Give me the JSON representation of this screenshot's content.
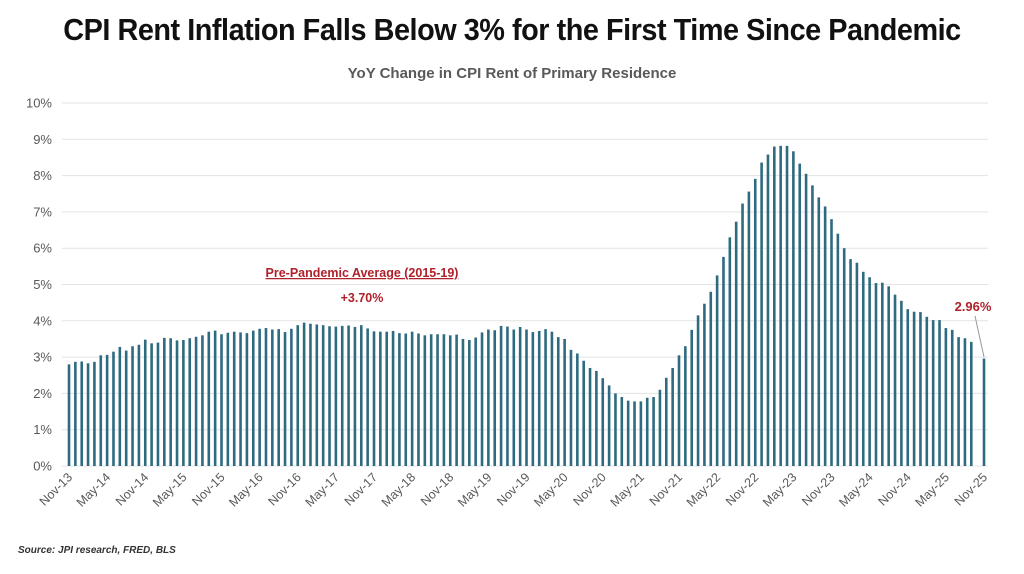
{
  "title": "CPI Rent Inflation Falls Below 3% for the First Time Since Pandemic",
  "source": "Source: JPI research, FRED, BLS",
  "chart_data": {
    "type": "bar",
    "title": "YoY Change in CPI Rent of Primary Residence",
    "xlabel": "",
    "ylabel": "",
    "ylim": [
      0,
      10
    ],
    "y_ticks": [
      "0%",
      "1%",
      "2%",
      "3%",
      "4%",
      "5%",
      "6%",
      "7%",
      "8%",
      "9%",
      "10%"
    ],
    "y_tick_values": [
      0,
      1,
      2,
      3,
      4,
      5,
      6,
      7,
      8,
      9,
      10
    ],
    "grid": true,
    "bar_color": "#2f6b80",
    "annotation_color": "#b0202a",
    "x_start": "Nov-13",
    "x_end": "Nov-25",
    "x_ticks": [
      "Nov-13",
      "May-14",
      "Nov-14",
      "May-15",
      "Nov-15",
      "May-16",
      "Nov-16",
      "May-17",
      "Nov-17",
      "May-18",
      "Nov-18",
      "May-19",
      "Nov-19",
      "May-20",
      "Nov-20",
      "May-21",
      "Nov-21",
      "May-22",
      "Nov-22",
      "May-23",
      "Nov-23",
      "May-24",
      "Nov-24",
      "May-25",
      "Nov-25"
    ],
    "values": [
      2.8,
      2.87,
      2.88,
      2.83,
      2.87,
      3.05,
      3.06,
      3.15,
      3.28,
      3.18,
      3.3,
      3.34,
      3.48,
      3.38,
      3.4,
      3.53,
      3.52,
      3.46,
      3.47,
      3.52,
      3.56,
      3.6,
      3.7,
      3.73,
      3.63,
      3.67,
      3.7,
      3.68,
      3.66,
      3.73,
      3.78,
      3.8,
      3.76,
      3.77,
      3.69,
      3.78,
      3.88,
      3.95,
      3.92,
      3.9,
      3.88,
      3.85,
      3.84,
      3.86,
      3.87,
      3.83,
      3.88,
      3.79,
      3.71,
      3.7,
      3.7,
      3.72,
      3.66,
      3.65,
      3.7,
      3.65,
      3.6,
      3.63,
      3.63,
      3.63,
      3.6,
      3.62,
      3.5,
      3.47,
      3.54,
      3.68,
      3.76,
      3.74,
      3.86,
      3.84,
      3.76,
      3.83,
      3.76,
      3.69,
      3.72,
      3.77,
      3.7,
      3.55,
      3.5,
      3.2,
      3.1,
      2.9,
      2.7,
      2.62,
      2.42,
      2.22,
      2.0,
      1.9,
      1.8,
      1.78,
      1.78,
      1.88,
      1.9,
      2.1,
      2.43,
      2.7,
      3.05,
      3.3,
      3.75,
      4.15,
      4.47,
      4.8,
      5.25,
      5.76,
      6.3,
      6.73,
      7.23,
      7.56,
      7.91,
      8.36,
      8.58,
      8.8,
      8.82,
      8.82,
      8.67,
      8.33,
      8.05,
      7.73,
      7.4,
      7.15,
      6.8,
      6.4,
      6.0,
      5.7,
      5.6,
      5.35,
      5.2,
      5.04,
      5.05,
      4.95,
      4.72,
      4.55,
      4.32,
      4.25,
      4.24,
      4.11,
      4.02,
      4.02,
      3.8,
      3.75,
      3.55,
      3.52,
      3.42,
      null,
      2.96
    ],
    "annotations": [
      {
        "text": "Pre-Pandemic Average (2015-19)",
        "style": "underlined"
      },
      {
        "text": "+3.70%"
      },
      {
        "text": "2.96%"
      }
    ]
  }
}
